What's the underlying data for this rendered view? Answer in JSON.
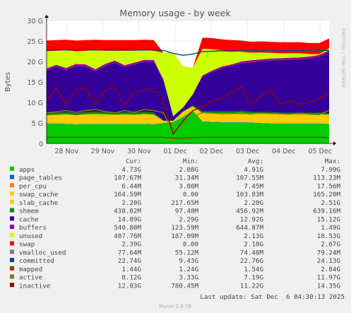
{
  "chart_data": {
    "type": "area",
    "title": "Memory usage - by week",
    "ylabel": "Bytes",
    "side_label": "RRDTOOL / TOBI OETIKER",
    "ylim": [
      0,
      30
    ],
    "y_unit": "G",
    "yticks": [
      "0",
      "5 G",
      "10 G",
      "15 G",
      "20 G",
      "25 G",
      "30 G"
    ],
    "x": [
      "28 Nov",
      "29 Nov",
      "30 Nov",
      "01 Dec",
      "02 Dec",
      "03 Dec",
      "04 Dec",
      "05 Dec"
    ],
    "grid": true,
    "stacked_series": [
      {
        "name": "apps",
        "color": "#00cc00",
        "values": [
          4.8,
          4.8,
          4.7,
          4.6,
          4.7,
          4.7,
          4.7,
          4.7,
          4.7,
          4.7,
          4.7,
          4.6,
          4.9,
          5.1,
          6.4,
          7.9,
          5.3,
          5.2,
          5.1,
          5.1,
          5.1,
          5.0,
          4.9,
          4.8,
          4.8,
          4.8,
          4.8,
          4.8,
          4.8,
          4.7
        ]
      },
      {
        "name": "page_tables",
        "color": "#0066b3",
        "values": [
          0.1,
          0.1,
          0.1,
          0.1,
          0.1,
          0.1,
          0.1,
          0.1,
          0.1,
          0.1,
          0.1,
          0.1,
          0.1,
          0.1,
          0.1,
          0.1,
          0.1,
          0.1,
          0.1,
          0.1,
          0.1,
          0.1,
          0.1,
          0.1,
          0.1,
          0.1,
          0.1,
          0.1,
          0.1,
          0.1
        ]
      },
      {
        "name": "slab_cache",
        "color": "#ffcc00",
        "values": [
          2.0,
          2.1,
          2.3,
          2.2,
          2.3,
          2.4,
          2.3,
          2.2,
          2.3,
          2.2,
          2.4,
          2.3,
          0.5,
          0.3,
          1.2,
          1.0,
          2.0,
          2.1,
          2.2,
          2.2,
          2.3,
          2.2,
          2.2,
          2.3,
          2.2,
          2.2,
          2.2,
          2.2,
          2.2,
          2.2
        ]
      },
      {
        "name": "shmem",
        "color": "#008f00",
        "values": [
          0.5,
          0.5,
          0.5,
          0.5,
          0.5,
          0.5,
          0.5,
          0.5,
          0.5,
          0.5,
          0.5,
          0.5,
          0.1,
          0.1,
          0.2,
          0.3,
          0.4,
          0.4,
          0.4,
          0.4,
          0.4,
          0.4,
          0.4,
          0.4,
          0.4,
          0.4,
          0.4,
          0.4,
          0.4,
          0.4
        ]
      },
      {
        "name": "cache",
        "color": "#330099",
        "values": [
          10.4,
          11.2,
          10.3,
          11.5,
          11.2,
          9.9,
          11.3,
          12.2,
          11.0,
          11.7,
          12.2,
          12.4,
          9.8,
          1.0,
          0.8,
          2.5,
          8.5,
          9.6,
          10.6,
          11.1,
          11.6,
          12.1,
          12.4,
          12.6,
          12.8,
          12.9,
          13.0,
          13.2,
          13.6,
          14.9
        ]
      },
      {
        "name": "buffers",
        "color": "#990099",
        "values": [
          0.5,
          0.5,
          0.5,
          0.5,
          0.5,
          0.5,
          0.5,
          0.5,
          0.5,
          0.5,
          0.5,
          0.5,
          0.2,
          0.1,
          0.1,
          0.2,
          0.3,
          0.4,
          0.4,
          0.4,
          0.5,
          0.5,
          0.5,
          0.5,
          0.5,
          0.5,
          0.5,
          0.5,
          0.5,
          0.5
        ]
      },
      {
        "name": "unused",
        "color": "#ccff00",
        "values": [
          4.2,
          3.4,
          4.3,
          3.1,
          3.3,
          4.6,
          3.2,
          2.4,
          3.5,
          2.9,
          2.3,
          2.2,
          6.5,
          15.5,
          10.0,
          6.5,
          6.5,
          5.2,
          3.9,
          3.2,
          2.4,
          1.8,
          1.7,
          1.4,
          1.2,
          1.1,
          1.0,
          0.6,
          0.2,
          0.4
        ]
      },
      {
        "name": "swap",
        "color": "#ff0000",
        "values": [
          2.6,
          2.6,
          2.6,
          2.6,
          2.6,
          2.6,
          2.6,
          2.6,
          2.6,
          2.6,
          2.6,
          2.6,
          0.0,
          0.0,
          0.0,
          0.0,
          2.7,
          2.7,
          2.7,
          2.7,
          2.7,
          2.7,
          2.7,
          2.7,
          2.7,
          2.7,
          2.7,
          2.7,
          2.7,
          2.4
        ]
      }
    ],
    "line_series": [
      {
        "name": "committed",
        "color": "#004d80",
        "values": [
          22.8,
          22.9,
          22.8,
          22.9,
          22.9,
          22.8,
          22.9,
          22.8,
          22.9,
          22.8,
          22.8,
          22.9,
          22.7,
          22.0,
          21.5,
          21.8,
          22.4,
          22.5,
          22.6,
          22.5,
          22.6,
          22.7,
          22.6,
          22.7,
          22.6,
          22.7,
          22.7,
          22.6,
          22.7,
          22.7
        ]
      },
      {
        "name": "mapped",
        "color": "#993300",
        "values": [
          1.5,
          1.5,
          1.5,
          1.5,
          1.5,
          1.5,
          1.5,
          1.5,
          1.5,
          1.5,
          1.5,
          1.5,
          1.5,
          1.3,
          1.3,
          1.4,
          1.5,
          1.5,
          1.5,
          1.5,
          1.5,
          1.5,
          1.5,
          1.5,
          1.5,
          1.5,
          1.5,
          1.5,
          1.5,
          1.4
        ]
      },
      {
        "name": "active",
        "color": "#808000",
        "values": [
          7.5,
          7.7,
          8.0,
          7.6,
          8.0,
          8.3,
          7.8,
          7.5,
          8.0,
          7.6,
          8.3,
          8.0,
          7.5,
          2.5,
          5.0,
          6.5,
          7.5,
          7.4,
          7.2,
          7.3,
          7.3,
          7.2,
          7.4,
          7.3,
          7.2,
          7.1,
          7.4,
          7.1,
          7.0,
          8.1
        ]
      },
      {
        "name": "inactive",
        "color": "#990000",
        "values": [
          10.5,
          13.5,
          9.5,
          13.0,
          13.5,
          9.5,
          13.0,
          13.5,
          9.3,
          12.5,
          13.0,
          13.3,
          10.0,
          2.3,
          5.5,
          8.0,
          9.0,
          10.3,
          11.0,
          12.5,
          13.8,
          9.5,
          11.5,
          13.0,
          9.5,
          10.5,
          9.5,
          10.0,
          11.0,
          12.0
        ]
      }
    ],
    "legend_position": "bottom",
    "legend_headers": {
      "cur": "Cur:",
      "min": "Min:",
      "avg": "Avg:",
      "max": "Max:"
    },
    "legend": [
      {
        "name": "apps",
        "color": "#00cc00",
        "cur": "4.73G",
        "min": "2.08G",
        "avg": "4.91G",
        "max": "7.99G"
      },
      {
        "name": "page_tables",
        "color": "#0066b3",
        "cur": "107.67M",
        "min": "31.34M",
        "avg": "107.55M",
        "max": "113.23M"
      },
      {
        "name": "per_cpu",
        "color": "#ff8000",
        "cur": "6.44M",
        "min": "3.80M",
        "avg": "7.45M",
        "max": "17.56M"
      },
      {
        "name": "swap_cache",
        "color": "#ffcc00",
        "cur": "164.59M",
        "min": "0.00",
        "avg": "103.83M",
        "max": "165.20M"
      },
      {
        "name": "slab_cache",
        "color": "#ffcc00",
        "cur": "2.20G",
        "min": "217.65M",
        "avg": "2.20G",
        "max": "2.51G"
      },
      {
        "name": "shmem",
        "color": "#008f00",
        "cur": "438.02M",
        "min": "97.48M",
        "avg": "456.92M",
        "max": "639.16M"
      },
      {
        "name": "cache",
        "color": "#330099",
        "cur": "14.89G",
        "min": "2.29G",
        "avg": "12.92G",
        "max": "15.12G"
      },
      {
        "name": "buffers",
        "color": "#990099",
        "cur": "540.80M",
        "min": "123.59M",
        "avg": "644.87M",
        "max": "1.49G"
      },
      {
        "name": "unused",
        "color": "#ccff00",
        "cur": "407.76M",
        "min": "187.09M",
        "avg": "2.13G",
        "max": "18.53G"
      },
      {
        "name": "swap",
        "color": "#ff0000",
        "cur": "2.39G",
        "min": "0.00",
        "avg": "2.18G",
        "max": "2.67G"
      },
      {
        "name": "vmalloc_used",
        "color": "#808080",
        "cur": "77.64M",
        "min": "55.12M",
        "avg": "74.48M",
        "max": "79.24M"
      },
      {
        "name": "committed",
        "color": "#004d80",
        "cur": "22.74G",
        "min": "9.43G",
        "avg": "22.76G",
        "max": "24.13G"
      },
      {
        "name": "mapped",
        "color": "#993300",
        "cur": "1.44G",
        "min": "1.24G",
        "avg": "1.54G",
        "max": "2.84G"
      },
      {
        "name": "active",
        "color": "#808000",
        "cur": "8.12G",
        "min": "3.33G",
        "avg": "7.19G",
        "max": "11.97G"
      },
      {
        "name": "inactive",
        "color": "#990000",
        "cur": "12.03G",
        "min": "780.45M",
        "avg": "11.22G",
        "max": "14.35G"
      }
    ],
    "last_update": "Last update: Sat Dec  6 04:30:13 2025",
    "footer": "Munin 2.0.76"
  }
}
